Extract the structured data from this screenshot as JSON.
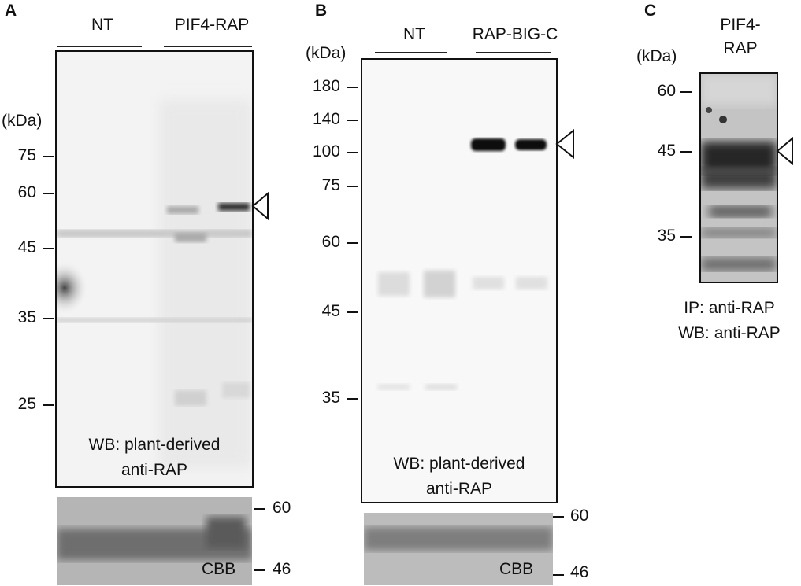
{
  "panel_a": {
    "letter": "A",
    "groups": [
      "NT",
      "PIF4-RAP"
    ],
    "unit": "(kDa)",
    "markers": [
      "75",
      "60",
      "45",
      "35",
      "25"
    ],
    "caption_line1": "WB: plant-derived",
    "caption_line2": "anti-RAP",
    "cbb_label": "CBB",
    "cbb_markers": [
      "60",
      "46"
    ]
  },
  "panel_b": {
    "letter": "B",
    "groups": [
      "NT",
      "RAP-BIG-C"
    ],
    "unit": "(kDa)",
    "markers": [
      "180",
      "140",
      "100",
      "75",
      "60",
      "45",
      "35"
    ],
    "caption_line1": "WB: plant-derived",
    "caption_line2": "anti-RAP",
    "cbb_label": "CBB",
    "cbb_markers": [
      "60",
      "46"
    ]
  },
  "panel_c": {
    "letter": "C",
    "sample_line1": "PIF4-",
    "sample_line2": "RAP",
    "unit": "(kDa)",
    "markers": [
      "60",
      "45",
      "35"
    ],
    "caption_line1": "IP: anti-RAP",
    "caption_line2": "WB: anti-RAP"
  },
  "colors": {
    "background": "#ffffff",
    "membrane": "#efefef",
    "band": "#111111",
    "cbb_gel": "#9a9a9a"
  },
  "icons": [
    "open-triangle-arrowhead-icon"
  ]
}
